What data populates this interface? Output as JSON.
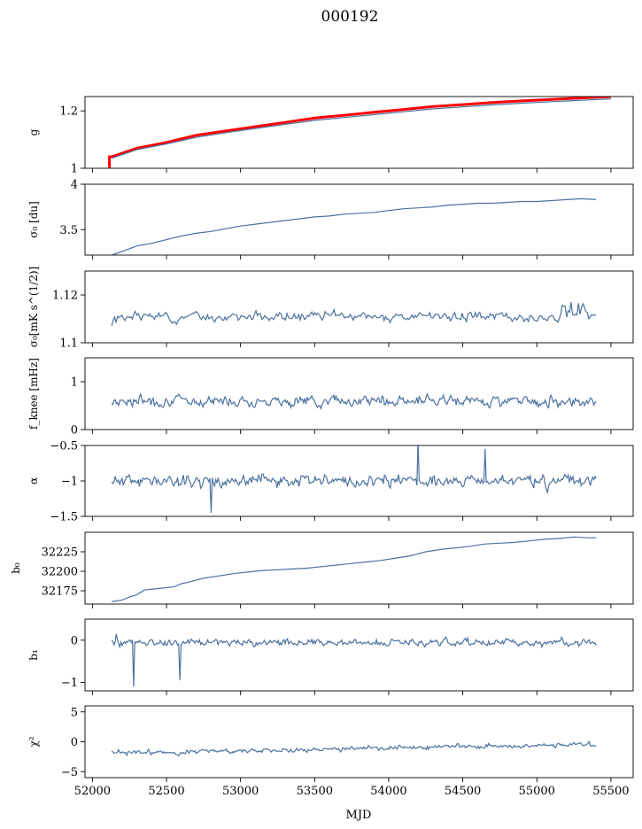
{
  "figure": {
    "title": "000192",
    "xlabel": "MJD"
  },
  "chart_data": [
    {
      "type": "line",
      "ylabel": "g",
      "ylim": [
        1.0,
        1.25
      ],
      "xlim": [
        51950,
        55650
      ],
      "yticks": [
        1.0,
        1.2
      ],
      "series": [
        {
          "color": "#ff0000",
          "x": [
            52115,
            52115,
            52130,
            52300,
            52500,
            52700,
            52900,
            53100,
            53300,
            53500,
            53700,
            53900,
            54100,
            54300,
            54500,
            54700,
            54900,
            55100,
            55300,
            55500
          ],
          "y": [
            1.0,
            1.04,
            1.04,
            1.07,
            1.09,
            1.115,
            1.13,
            1.145,
            1.16,
            1.175,
            1.185,
            1.195,
            1.205,
            1.215,
            1.222,
            1.229,
            1.235,
            1.24,
            1.245,
            1.25
          ]
        },
        {
          "color": "#4c72a0",
          "x": [
            52130,
            52300,
            52500,
            52700,
            52900,
            53100,
            53300,
            53500,
            53700,
            53900,
            54100,
            54300,
            54500,
            54700,
            54900,
            55100,
            55300,
            55500
          ],
          "y": [
            1.035,
            1.065,
            1.085,
            1.108,
            1.124,
            1.139,
            1.153,
            1.167,
            1.177,
            1.187,
            1.197,
            1.207,
            1.214,
            1.221,
            1.227,
            1.232,
            1.237,
            1.242
          ]
        }
      ]
    },
    {
      "type": "line",
      "ylabel": "σ₀ [du]",
      "ylim": [
        3.22,
        4.0
      ],
      "xlim": [
        51950,
        55650
      ],
      "yticks": [
        3.5,
        4.0
      ],
      "series": [
        {
          "color": "#4c72a0",
          "x": [
            52130,
            52200,
            52300,
            52400,
            52500,
            52600,
            52700,
            52800,
            52900,
            53000,
            53100,
            53200,
            53300,
            53400,
            53500,
            53600,
            53700,
            53800,
            53900,
            54000,
            54100,
            54200,
            54300,
            54400,
            54500,
            54600,
            54700,
            54800,
            54900,
            55000,
            55100,
            55200,
            55300,
            55400
          ],
          "y": [
            3.22,
            3.26,
            3.32,
            3.35,
            3.39,
            3.43,
            3.46,
            3.48,
            3.51,
            3.54,
            3.56,
            3.58,
            3.6,
            3.62,
            3.64,
            3.65,
            3.67,
            3.68,
            3.69,
            3.71,
            3.73,
            3.74,
            3.75,
            3.77,
            3.78,
            3.79,
            3.79,
            3.8,
            3.81,
            3.81,
            3.82,
            3.83,
            3.84,
            3.83
          ]
        }
      ]
    },
    {
      "type": "line",
      "ylabel": "σ₀[mK s^(1/2)]",
      "ylim": [
        1.1,
        1.13
      ],
      "xlim": [
        51950,
        55650
      ],
      "yticks": [
        1.1,
        1.12
      ],
      "series": [
        {
          "color": "#4c72a0",
          "generator": "noise",
          "xstart": 52130,
          "xend": 55400,
          "n": 330,
          "base": 1.111,
          "amp": 0.0025,
          "start_dip": -0.006,
          "end_rise": 0.005,
          "seed": 3
        }
      ]
    },
    {
      "type": "line",
      "ylabel": "f_knee [mHz]",
      "ylim": [
        0,
        1.5
      ],
      "xlim": [
        51950,
        55650
      ],
      "yticks": [
        0,
        1
      ],
      "series": [
        {
          "color": "#4c72a0",
          "generator": "noise",
          "xstart": 52130,
          "xend": 55400,
          "n": 420,
          "base": 0.6,
          "amp": 0.15,
          "seed": 7
        }
      ]
    },
    {
      "type": "line",
      "ylabel": "α",
      "ylim": [
        -1.5,
        -0.5
      ],
      "xlim": [
        51950,
        55650
      ],
      "yticks": [
        -1.5,
        -1.0,
        -0.5
      ],
      "series": [
        {
          "color": "#4c72a0",
          "generator": "noise",
          "xstart": 52130,
          "xend": 55400,
          "n": 420,
          "base": -1.0,
          "amp": 0.12,
          "spikes": [
            [
              52800,
              -1.45
            ],
            [
              54200,
              -0.45
            ],
            [
              54650,
              -0.55
            ]
          ],
          "seed": 11
        }
      ]
    },
    {
      "type": "line",
      "ylabel": "b₀",
      "ylim": [
        32158,
        32250
      ],
      "xlim": [
        51950,
        55650
      ],
      "yticks": [
        32175,
        32200,
        32225
      ],
      "series": [
        {
          "color": "#4c72a0",
          "x": [
            52130,
            52200,
            52250,
            52300,
            52350,
            52450,
            52550,
            52600,
            52650,
            52750,
            52850,
            52950,
            53050,
            53150,
            53250,
            53350,
            53450,
            53550,
            53650,
            53750,
            53850,
            53950,
            54050,
            54150,
            54250,
            54350,
            54450,
            54550,
            54650,
            54750,
            54850,
            54950,
            55050,
            55150,
            55250,
            55350,
            55400
          ],
          "y": [
            32161,
            32163,
            32167,
            32170,
            32176,
            32178,
            32180,
            32184,
            32186,
            32191,
            32194,
            32197,
            32199,
            32201,
            32202,
            32203,
            32204,
            32206,
            32208,
            32210,
            32212,
            32214,
            32217,
            32220,
            32225,
            32228,
            32230,
            32232,
            32235,
            32236,
            32237,
            32239,
            32241,
            32242,
            32244,
            32243,
            32243
          ]
        }
      ]
    },
    {
      "type": "line",
      "ylabel": "b₁",
      "ylim": [
        -1.2,
        0.5
      ],
      "xlim": [
        51950,
        55650
      ],
      "yticks": [
        -1,
        0
      ],
      "series": [
        {
          "color": "#4c72a0",
          "generator": "noise",
          "xstart": 52130,
          "xend": 55400,
          "n": 420,
          "base": -0.05,
          "amp": 0.12,
          "spikes": [
            [
              52280,
              -1.1
            ],
            [
              52590,
              -0.95
            ],
            [
              52160,
              0.15
            ]
          ],
          "seed": 19
        }
      ]
    },
    {
      "type": "line",
      "ylabel": "χ²",
      "ylim": [
        -6,
        6
      ],
      "xlim": [
        51950,
        55650
      ],
      "yticks": [
        -5,
        0,
        5
      ],
      "series": [
        {
          "color": "#4c72a0",
          "generator": "noise",
          "xstart": 52130,
          "xend": 55400,
          "n": 420,
          "base": -1.9,
          "drift_to": -0.4,
          "amp": 0.55,
          "seed": 23
        }
      ]
    }
  ],
  "xticks": [
    52000,
    52500,
    53000,
    53500,
    54000,
    54500,
    55000,
    55500
  ]
}
